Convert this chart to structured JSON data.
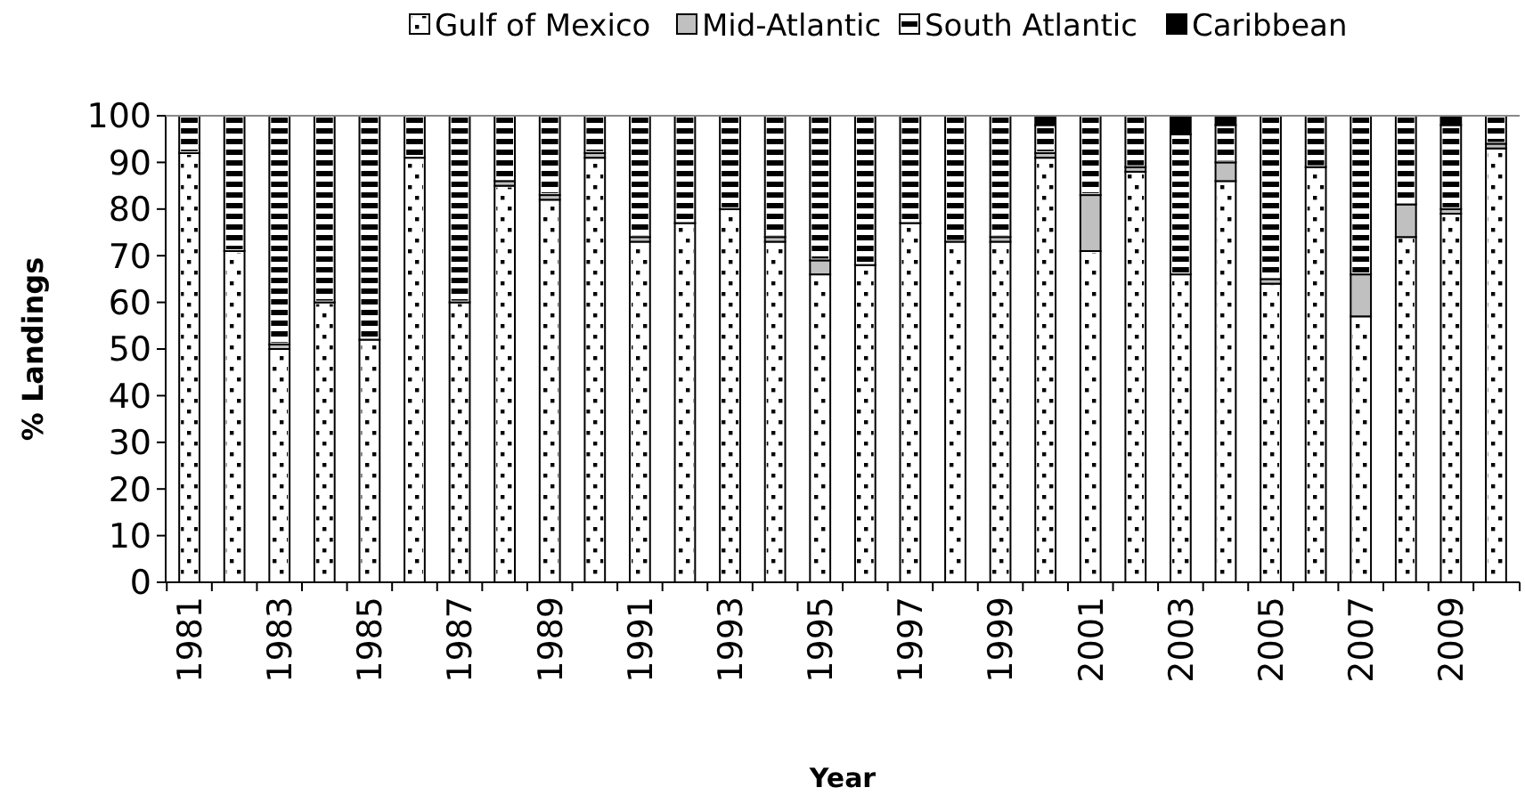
{
  "chart_data": {
    "type": "bar",
    "stacked": true,
    "xlabel": "Year",
    "ylabel": "% Landings",
    "categories": [
      "1981",
      null,
      "1983",
      null,
      "1985",
      null,
      "1987",
      null,
      "1989",
      null,
      "1991",
      null,
      "1993",
      null,
      "1995",
      null,
      "1997",
      null,
      "1999",
      null,
      "2001",
      null,
      "2003",
      null,
      "2005",
      null,
      "2007",
      null,
      "2009",
      null
    ],
    "series": [
      {
        "name": "Gulf of Mexico",
        "color": "#ffffff",
        "values": [
          92,
          71,
          50,
          60,
          52,
          91,
          60,
          85,
          82,
          91,
          73,
          77,
          80,
          73,
          66,
          68,
          77,
          73,
          73,
          91,
          71,
          88,
          66,
          86,
          64,
          89,
          57,
          74,
          79,
          93
        ]
      },
      {
        "name": "Mid-Atlantic",
        "color": "#c0c0c0",
        "values": [
          0,
          0,
          1,
          0,
          0,
          0,
          0,
          1,
          1,
          1,
          1,
          0,
          0,
          1,
          3,
          0,
          0,
          0,
          1,
          1,
          12,
          1,
          0,
          4,
          1,
          0,
          9,
          7,
          1,
          1
        ]
      },
      {
        "name": "South Atlantic",
        "color": "#ffffff",
        "values": [
          8,
          29,
          49,
          40,
          48,
          9,
          40,
          14,
          17,
          8,
          26,
          23,
          20,
          26,
          31,
          32,
          23,
          27,
          26,
          6,
          17,
          11,
          30,
          8,
          35,
          11,
          34,
          19,
          18,
          6
        ]
      },
      {
        "name": "Caribbean",
        "color": "#000000",
        "values": [
          0,
          0,
          0,
          0,
          0,
          0,
          0,
          0,
          0,
          0,
          0,
          0,
          0,
          0,
          0,
          0,
          0,
          0,
          0,
          2,
          0,
          0,
          4,
          2,
          0,
          0,
          0,
          0,
          2,
          0
        ]
      }
    ],
    "ylim": [
      0,
      100
    ],
    "yticks": [
      0,
      10,
      20,
      30,
      40,
      50,
      60,
      70,
      80,
      90,
      100
    ],
    "grid": false,
    "legend": "top"
  }
}
